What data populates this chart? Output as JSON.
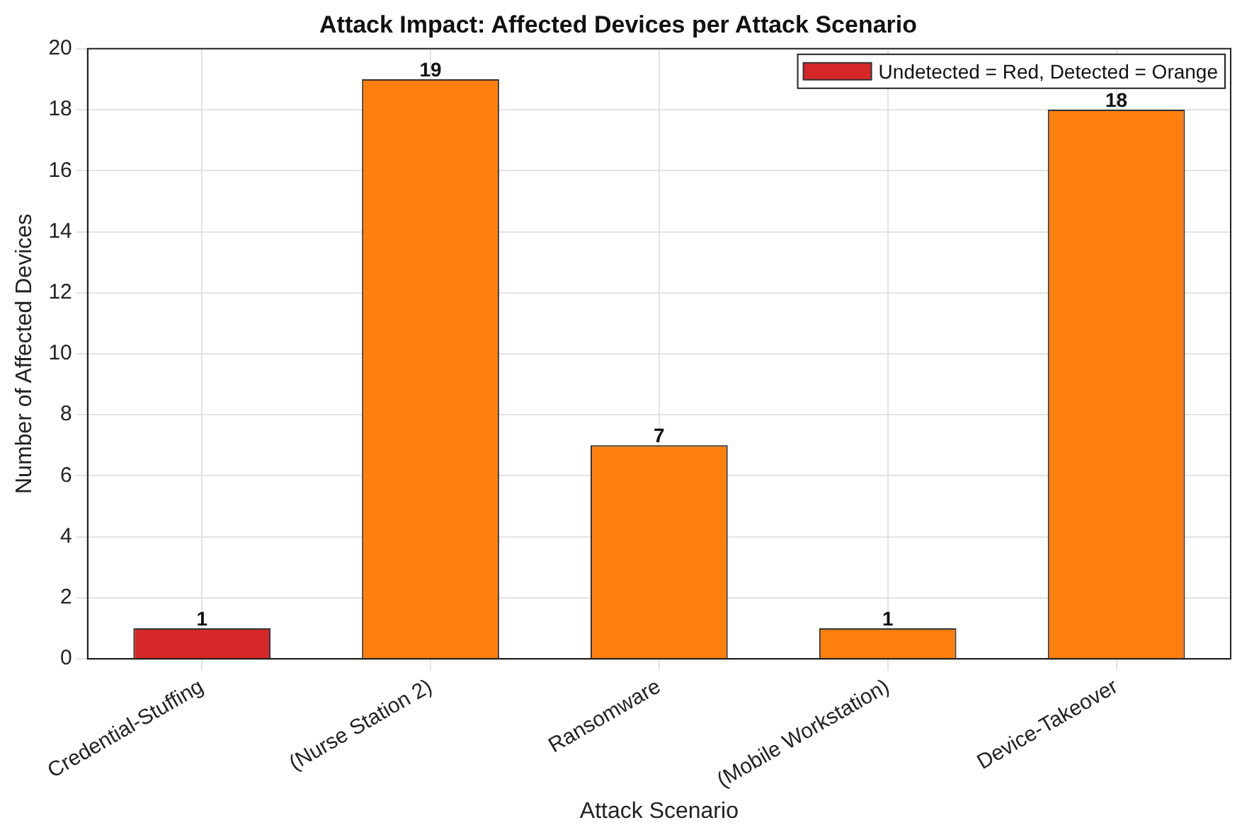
{
  "chart_data": {
    "type": "bar",
    "title": "Attack Impact: Affected Devices per Attack Scenario",
    "xlabel": "Attack Scenario",
    "ylabel": "Number of Affected Devices",
    "categories": [
      "Credential-Stuffing",
      "(Nurse Station 2)",
      "Ransomware",
      "(Mobile Workstation)",
      "Device-Takeover"
    ],
    "series": [
      {
        "name": "Undetected = Red, Detected = Orange",
        "color": "#d62728",
        "colors": [
          "#d62728",
          "#ff7f0e",
          "#ff7f0e",
          "#ff7f0e",
          "#ff7f0e"
        ],
        "values": [
          1,
          19,
          7,
          1,
          18
        ]
      }
    ],
    "ylim": [
      0,
      20
    ],
    "yticks": [
      0,
      2,
      4,
      6,
      8,
      10,
      12,
      14,
      16,
      18,
      20
    ],
    "grid": true,
    "legend": "top right",
    "data_labels": true
  }
}
